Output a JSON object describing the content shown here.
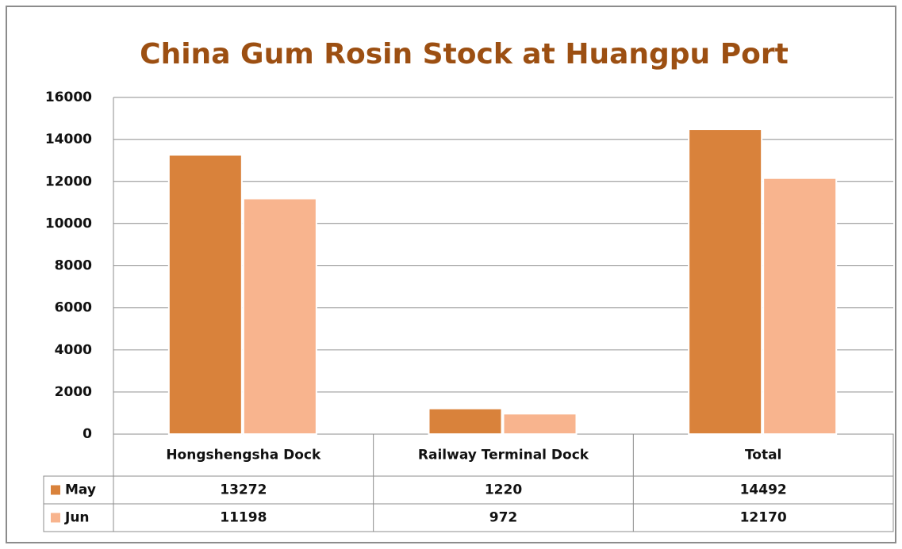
{
  "chart_data": {
    "type": "bar",
    "title": "China Gum Rosin Stock at Huangpu Port",
    "categories": [
      "Hongshengsha Dock",
      "Railway Terminal Dock",
      "Total"
    ],
    "series": [
      {
        "name": "May",
        "color": "#d9823b",
        "values": [
          13272,
          1220,
          14492
        ]
      },
      {
        "name": "Jun",
        "color": "#f8b48e",
        "values": [
          11198,
          972,
          12170
        ]
      }
    ],
    "ylim": [
      0,
      16000
    ],
    "yticks": [
      0,
      2000,
      4000,
      6000,
      8000,
      10000,
      12000,
      14000,
      16000
    ],
    "grid": true
  }
}
